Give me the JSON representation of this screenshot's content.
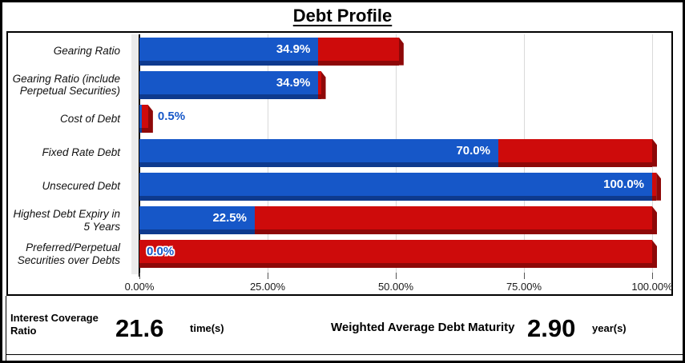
{
  "title": "Debt Profile",
  "chart_data": {
    "type": "bar",
    "orientation": "horizontal",
    "stacked": true,
    "title": "Debt Profile",
    "categories": [
      "Gearing Ratio",
      "Gearing Ratio (include Perpetual Securities)",
      "Cost of Debt",
      "Fixed Rate Debt",
      "Unsecured Debt",
      "Highest Debt Expiry in 5 Years",
      "Preferred/Perpetual Securities over Debts"
    ],
    "series": [
      {
        "name": "Metric value (blue)",
        "color": "#1657c8",
        "dark": "#0e3a8e",
        "values": [
          34.9,
          34.9,
          0.5,
          70.0,
          100.0,
          22.5,
          0.0
        ]
      },
      {
        "name": "Remainder (red)",
        "color": "#ce0b0b",
        "dark": "#8e0808",
        "values": [
          15.7,
          0.5,
          1.2,
          30.0,
          0.8,
          77.5,
          100.0
        ]
      }
    ],
    "value_labels": [
      "34.9%",
      "34.9%",
      "0.5%",
      "70.0%",
      "100.0%",
      "22.5%",
      "0.0%"
    ],
    "label_placement": [
      "inside",
      "inside",
      "after",
      "inside",
      "inside",
      "inside",
      "over-red-left"
    ],
    "x_ticks": [
      "0.00%",
      "25.00%",
      "50.00%",
      "75.00%",
      "100.00%"
    ],
    "x_tick_positions": [
      0,
      25,
      50,
      75,
      100
    ],
    "xlim": [
      0,
      100
    ],
    "grid": true,
    "colors": {
      "gridline": "#d9d9d9",
      "wall": "#ebebeb",
      "label_inside": "#ffffff",
      "label_outside": "#1657c8"
    }
  },
  "footer": {
    "icr_label": "Interest Coverage Ratio",
    "icr_value": "21.6",
    "icr_unit": "time(s)",
    "wadm_label": "Weighted Average Debt Maturity",
    "wadm_value": "2.90",
    "wadm_unit": "year(s)"
  }
}
